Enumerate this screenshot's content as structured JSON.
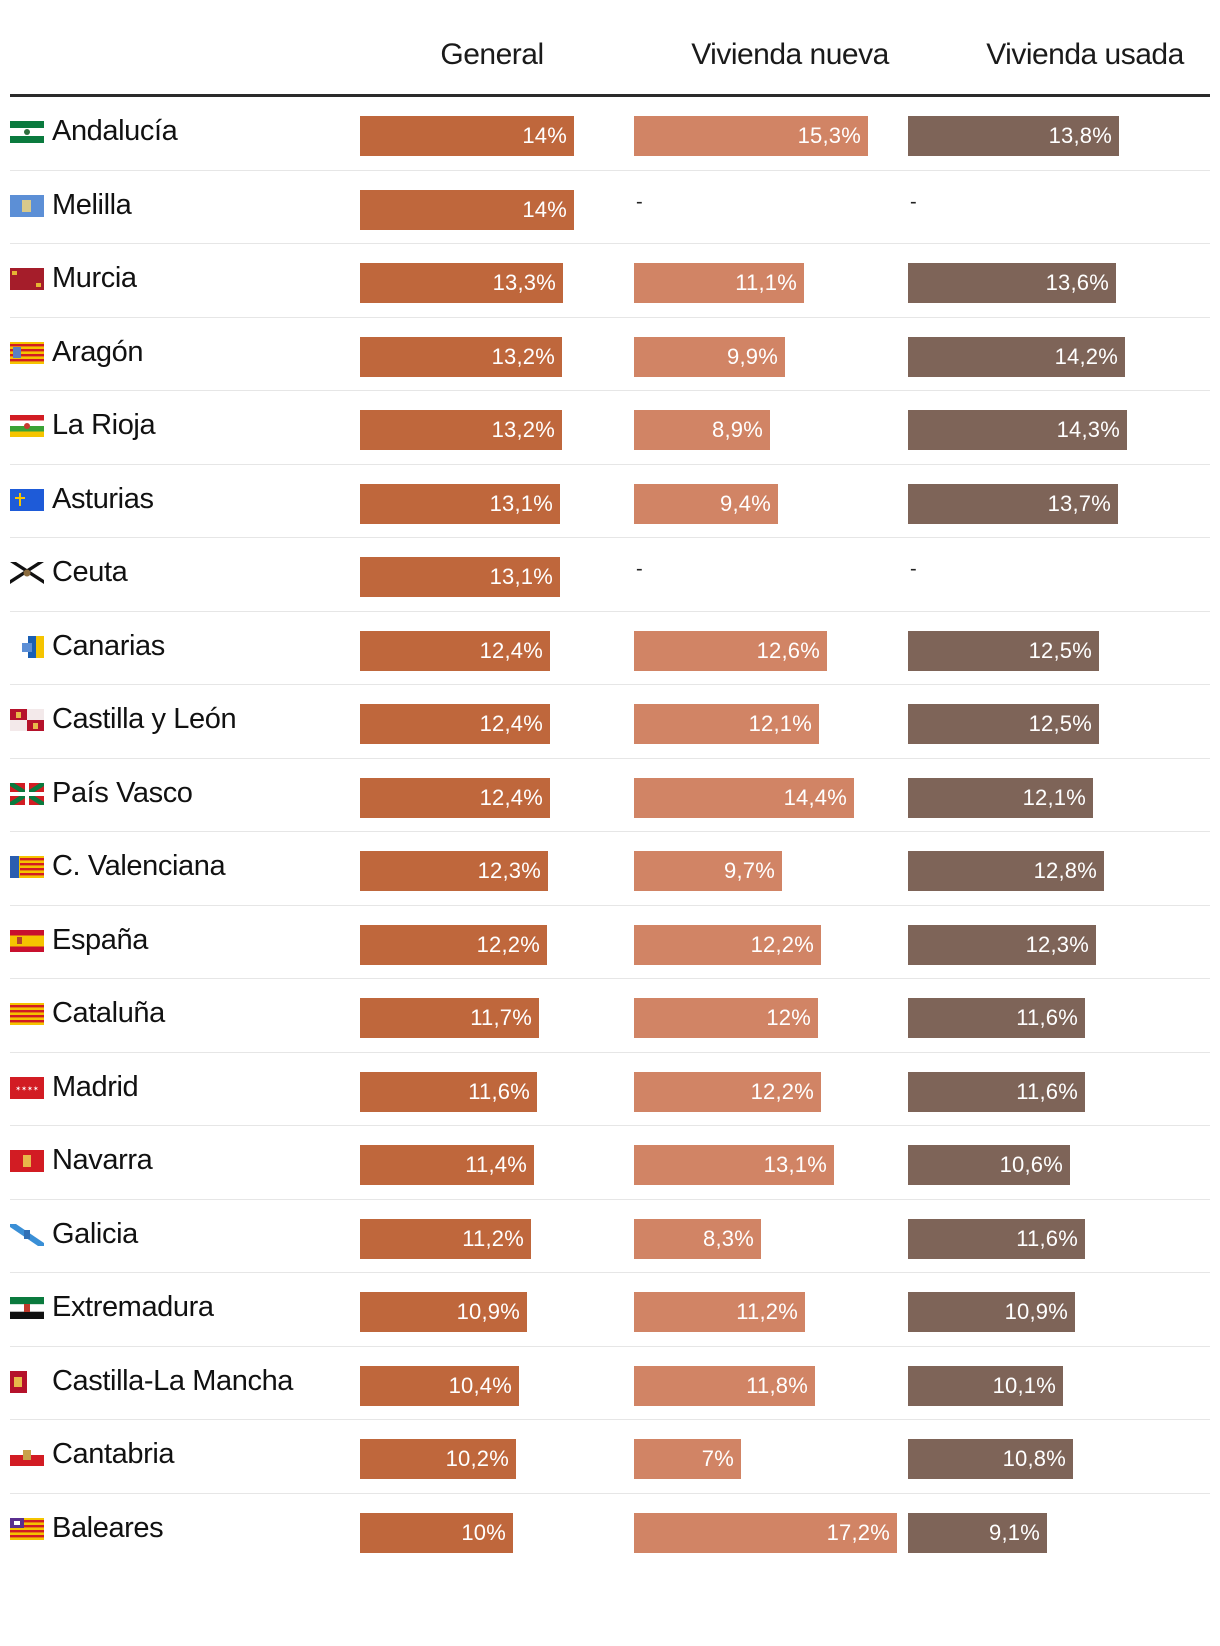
{
  "chart_data": {
    "type": "bar",
    "columns": [
      "General",
      "Vivienda nueva",
      "Vivienda usada"
    ],
    "colors": {
      "General": "#bf673c",
      "Vivienda nueva": "#d18465",
      "Vivienda usada": "#7e6458"
    },
    "rows": [
      {
        "region": "Andalucía",
        "flag": "andalucia-flag-icon",
        "values": [
          "14%",
          "15,3%",
          "13,8%"
        ],
        "nums": [
          14,
          15.3,
          13.8
        ]
      },
      {
        "region": "Melilla",
        "flag": "melilla-flag-icon",
        "values": [
          "14%",
          "-",
          "-"
        ],
        "nums": [
          14,
          null,
          null
        ]
      },
      {
        "region": "Murcia",
        "flag": "murcia-flag-icon",
        "values": [
          "13,3%",
          "11,1%",
          "13,6%"
        ],
        "nums": [
          13.3,
          11.1,
          13.6
        ]
      },
      {
        "region": "Aragón",
        "flag": "aragon-flag-icon",
        "values": [
          "13,2%",
          "9,9%",
          "14,2%"
        ],
        "nums": [
          13.2,
          9.9,
          14.2
        ]
      },
      {
        "region": "La Rioja",
        "flag": "la-rioja-flag-icon",
        "values": [
          "13,2%",
          "8,9%",
          "14,3%"
        ],
        "nums": [
          13.2,
          8.9,
          14.3
        ]
      },
      {
        "region": "Asturias",
        "flag": "asturias-flag-icon",
        "values": [
          "13,1%",
          "9,4%",
          "13,7%"
        ],
        "nums": [
          13.1,
          9.4,
          13.7
        ]
      },
      {
        "region": "Ceuta",
        "flag": "ceuta-flag-icon",
        "values": [
          "13,1%",
          "-",
          "-"
        ],
        "nums": [
          13.1,
          null,
          null
        ]
      },
      {
        "region": "Canarias",
        "flag": "canarias-flag-icon",
        "values": [
          "12,4%",
          "12,6%",
          "12,5%"
        ],
        "nums": [
          12.4,
          12.6,
          12.5
        ]
      },
      {
        "region": "Castilla y León",
        "flag": "castilla-y-leon-flag-icon",
        "values": [
          "12,4%",
          "12,1%",
          "12,5%"
        ],
        "nums": [
          12.4,
          12.1,
          12.5
        ]
      },
      {
        "region": "País Vasco",
        "flag": "pais-vasco-flag-icon",
        "values": [
          "12,4%",
          "14,4%",
          "12,1%"
        ],
        "nums": [
          12.4,
          14.4,
          12.1
        ]
      },
      {
        "region": "C. Valenciana",
        "flag": "c-valenciana-flag-icon",
        "values": [
          "12,3%",
          "9,7%",
          "12,8%"
        ],
        "nums": [
          12.3,
          9.7,
          12.8
        ]
      },
      {
        "region": "España",
        "flag": "espana-flag-icon",
        "values": [
          "12,2%",
          "12,2%",
          "12,3%"
        ],
        "nums": [
          12.2,
          12.2,
          12.3
        ]
      },
      {
        "region": "Cataluña",
        "flag": "cataluna-flag-icon",
        "values": [
          "11,7%",
          "12%",
          "11,6%"
        ],
        "nums": [
          11.7,
          12,
          11.6
        ]
      },
      {
        "region": "Madrid",
        "flag": "madrid-flag-icon",
        "values": [
          "11,6%",
          "12,2%",
          "11,6%"
        ],
        "nums": [
          11.6,
          12.2,
          11.6
        ]
      },
      {
        "region": "Navarra",
        "flag": "navarra-flag-icon",
        "values": [
          "11,4%",
          "13,1%",
          "10,6%"
        ],
        "nums": [
          11.4,
          13.1,
          10.6
        ]
      },
      {
        "region": "Galicia",
        "flag": "galicia-flag-icon",
        "values": [
          "11,2%",
          "8,3%",
          "11,6%"
        ],
        "nums": [
          11.2,
          8.3,
          11.6
        ]
      },
      {
        "region": "Extremadura",
        "flag": "extremadura-flag-icon",
        "values": [
          "10,9%",
          "11,2%",
          "10,9%"
        ],
        "nums": [
          10.9,
          11.2,
          10.9
        ]
      },
      {
        "region": "Castilla-La Mancha",
        "flag": "castilla-la-mancha-flag-icon",
        "values": [
          "10,4%",
          "11,8%",
          "10,1%"
        ],
        "nums": [
          10.4,
          11.8,
          10.1
        ]
      },
      {
        "region": "Cantabria",
        "flag": "cantabria-flag-icon",
        "values": [
          "10,2%",
          "7%",
          "10,8%"
        ],
        "nums": [
          10.2,
          7,
          10.8
        ]
      },
      {
        "region": "Baleares",
        "flag": "baleares-flag-icon",
        "values": [
          "10%",
          "17,2%",
          "9,1%"
        ],
        "nums": [
          10,
          17.2,
          9.1
        ]
      }
    ]
  }
}
